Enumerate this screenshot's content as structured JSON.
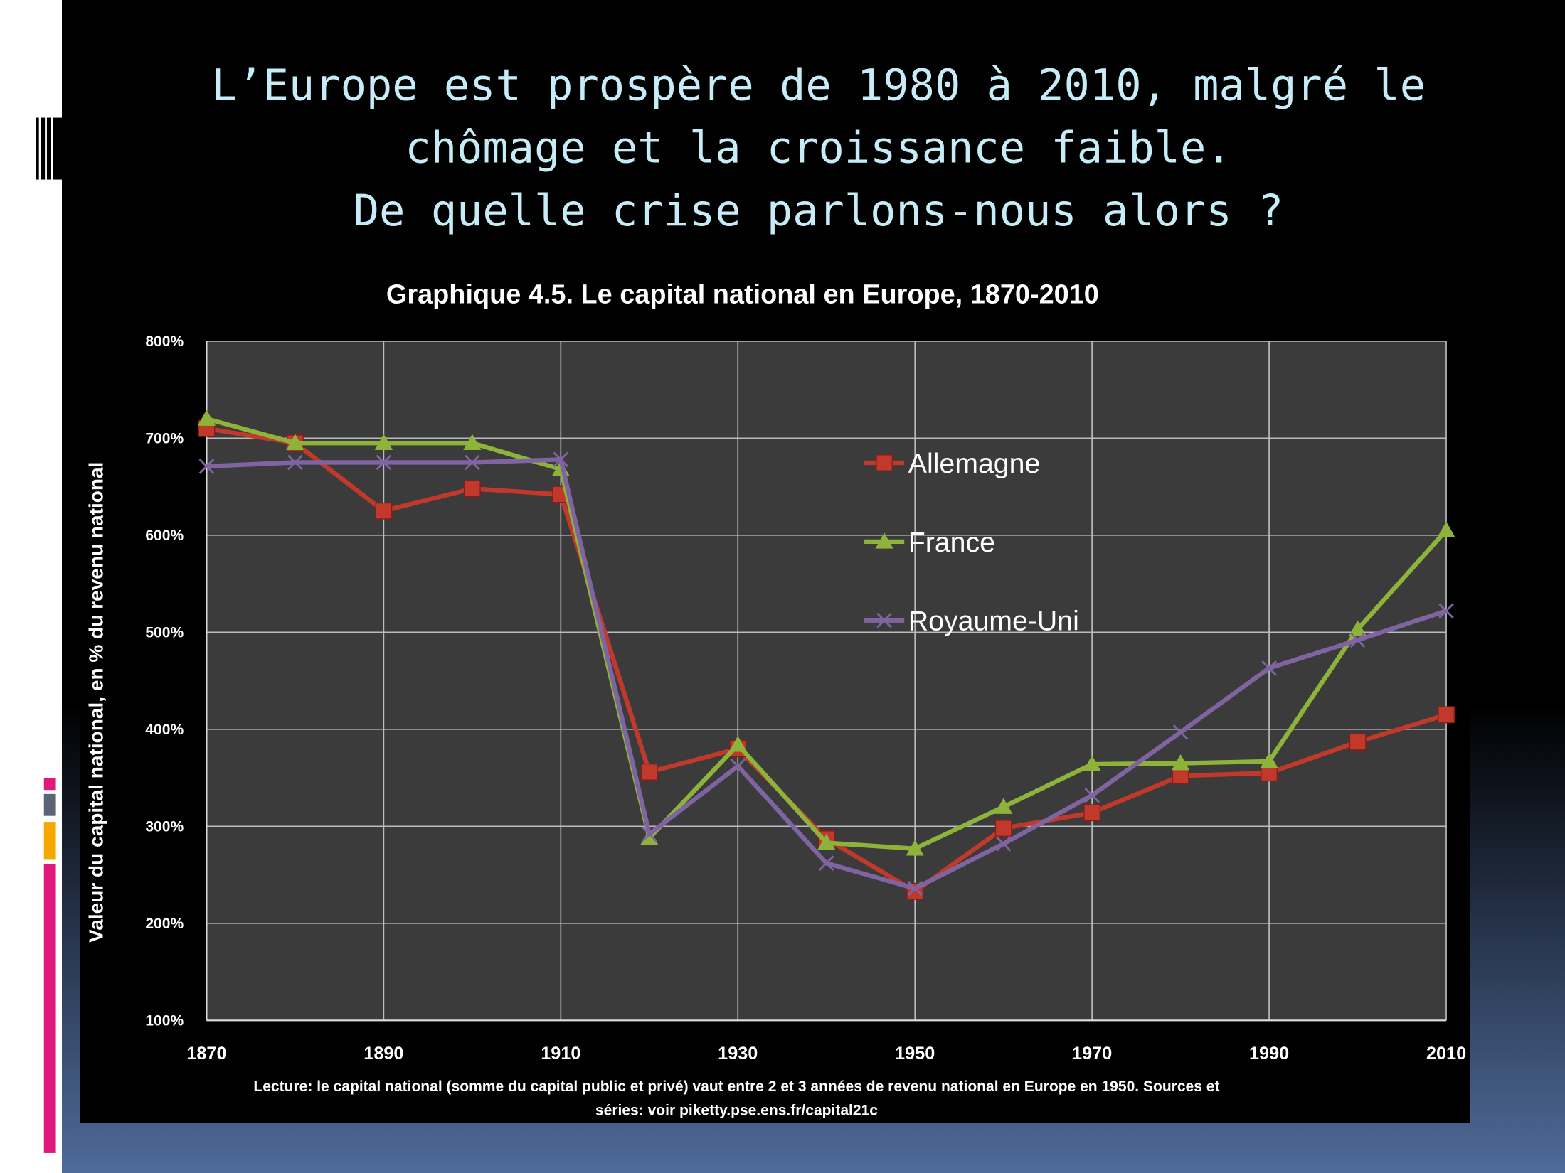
{
  "slide_title": [
    "L’Europe est prospère de 1980 à 2010, malgré le",
    "chômage et la croissance faible.",
    "De quelle crise parlons-nous alors ?"
  ],
  "chart_data": {
    "type": "line",
    "title": "Graphique 4.5. Le capital national en Europe, 1870-2010",
    "y_label": "Valeur du capital national,  en % du revenu national",
    "note": [
      "Lecture: le capital national (somme du capital public et privé) vaut entre 2 et 3 années de revenu national en Europe en 1950. Sources et",
      "séries: voir piketty.pse.ens.fr/capital21c"
    ],
    "x": [
      1870,
      1880,
      1890,
      1900,
      1910,
      1920,
      1930,
      1940,
      1950,
      1960,
      1970,
      1980,
      1990,
      2000,
      2010
    ],
    "xlim": [
      1870,
      2010
    ],
    "xticks": [
      1870,
      1890,
      1910,
      1930,
      1950,
      1970,
      1990,
      2010
    ],
    "ylim": [
      100,
      800
    ],
    "yticks": [
      {
        "value": 100,
        "label": "100%"
      },
      {
        "value": 200,
        "label": "200%"
      },
      {
        "value": 300,
        "label": "300%"
      },
      {
        "value": 400,
        "label": "400%"
      },
      {
        "value": 500,
        "label": "500%"
      },
      {
        "value": 600,
        "label": "600%"
      },
      {
        "value": 700,
        "label": "700%"
      },
      {
        "value": 800,
        "label": "800%"
      }
    ],
    "grid": true,
    "series": [
      {
        "name": "Allemagne",
        "color": "#c0392b",
        "marker": "square",
        "values": [
          710,
          695,
          625,
          648,
          642,
          356,
          380,
          287,
          233,
          298,
          314,
          352,
          355,
          387,
          415
        ]
      },
      {
        "name": "France",
        "color": "#8db33a",
        "marker": "triangle",
        "values": [
          720,
          695,
          695,
          695,
          668,
          288,
          384,
          283,
          277,
          320,
          364,
          365,
          367,
          503,
          605
        ]
      },
      {
        "name": "Royaume-Uni",
        "color": "#8064a2",
        "marker": "x",
        "values": [
          671,
          675,
          675,
          675,
          678,
          292,
          362,
          262,
          236,
          282,
          332,
          397,
          463,
          492,
          522
        ]
      }
    ]
  }
}
